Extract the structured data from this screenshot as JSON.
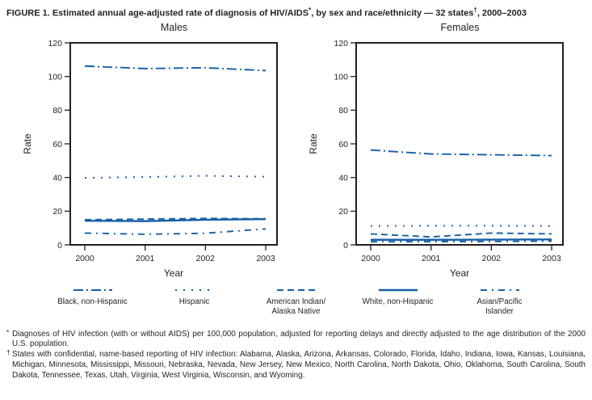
{
  "title": {
    "p1": "FIGURE 1. Estimated annual age-adjusted rate of diagnosis of HIV/AIDS",
    "s1": "*",
    "p2": ", by sex and race/ethnicity — 32 states",
    "s2": "†",
    "p3": ", 2000–2003"
  },
  "colors": {
    "line": "#1660a5",
    "axis": "#231f20"
  },
  "chart_data": [
    {
      "type": "line",
      "title": "Males",
      "xlabel": "Year",
      "ylabel": "Rate",
      "ylim": [
        0,
        120
      ],
      "yticks": [
        0,
        20,
        40,
        60,
        80,
        100,
        120
      ],
      "x": [
        2000,
        2001,
        2002,
        2003
      ],
      "grid": false,
      "series": [
        {
          "name": "Black, non-Hispanic",
          "dash": "12 4 2 4",
          "values": [
            106.2,
            104.7,
            105.2,
            103.5
          ]
        },
        {
          "name": "Hispanic",
          "dash": "2 8",
          "values": [
            39.8,
            40.3,
            41.0,
            40.5
          ]
        },
        {
          "name": "American Indian/Alaska Native",
          "dash": "8 5",
          "values": [
            14.9,
            15.3,
            15.7,
            15.5
          ]
        },
        {
          "name": "White, non-Hispanic",
          "dash": "",
          "values": [
            14.3,
            14.1,
            14.9,
            15.3
          ]
        },
        {
          "name": "Asian/Pacific Islander",
          "dash": "8 6 2 6",
          "values": [
            7.0,
            6.3,
            6.9,
            9.5
          ]
        }
      ]
    },
    {
      "type": "line",
      "title": "Females",
      "xlabel": "Year",
      "ylabel": "Rate",
      "ylim": [
        0,
        120
      ],
      "yticks": [
        0,
        20,
        40,
        60,
        80,
        100,
        120
      ],
      "x": [
        2000,
        2001,
        2002,
        2003
      ],
      "grid": false,
      "series": [
        {
          "name": "Black, non-Hispanic",
          "dash": "12 4 2 4",
          "values": [
            56.3,
            54.0,
            53.5,
            53.0
          ]
        },
        {
          "name": "Hispanic",
          "dash": "2 8",
          "values": [
            11.2,
            11.3,
            11.4,
            11.2
          ]
        },
        {
          "name": "American Indian/Alaska Native",
          "dash": "8 5",
          "values": [
            6.5,
            4.7,
            7.0,
            6.5
          ]
        },
        {
          "name": "White, non-Hispanic",
          "dash": "",
          "values": [
            3.0,
            3.0,
            3.1,
            3.2
          ]
        },
        {
          "name": "Asian/Pacific Islander",
          "dash": "8 6 2 6",
          "values": [
            1.8,
            1.9,
            2.0,
            2.2
          ]
        }
      ]
    }
  ],
  "legend": {
    "items": [
      {
        "label": "Black, non-Hispanic",
        "dash": "12 4 2 4"
      },
      {
        "label": "Hispanic",
        "dash": "2 8"
      },
      {
        "label": "American Indian/\nAlaska Native",
        "dash": "8 5"
      },
      {
        "label": "White, non-Hispanic",
        "dash": ""
      },
      {
        "label": "Asian/Pacific\nIslander",
        "dash": "8 6 2 6"
      }
    ]
  },
  "footnotes": [
    {
      "marker": "*",
      "text": "Diagnoses of HIV infection (with or without AIDS) per 100,000 population, adjusted for reporting delays and directly adjusted to the age distribution of the 2000 U.S. population."
    },
    {
      "marker": "†",
      "text": "States with confidential, name-based reporting of HIV infection: Alabama, Alaska, Arizona, Arkansas, Colorado, Florida, Idaho, Indiana, Iowa, Kansas, Louisiana, Michigan, Minnesota, Mississippi, Missouri, Nebraska, Nevada, New Jersey, New Mexico, North Carolina, North Dakota, Ohio, Oklahoma, South Carolina, South Dakota, Tennessee, Texas, Utah, Virginia, West Virginia, Wisconsin, and Wyoming."
    }
  ]
}
